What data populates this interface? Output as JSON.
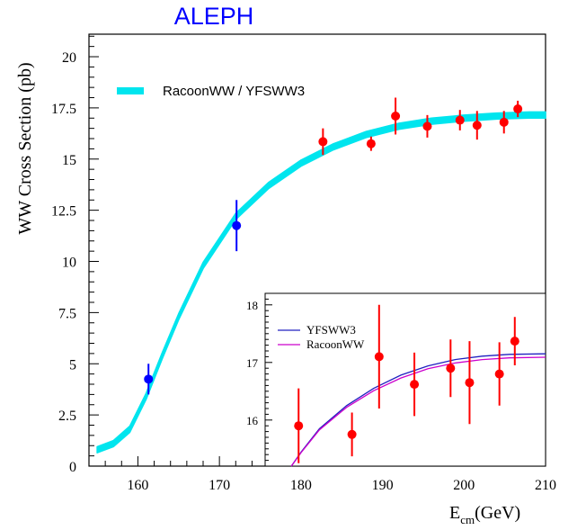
{
  "chart_data": [
    {
      "type": "scatter",
      "title": "ALEPH",
      "title_color": "#0000ff",
      "xlabel": "E",
      "xlabel_sub": "cm",
      "xlabel_unit": "(GeV)",
      "ylabel": "WW Cross Section (pb)",
      "xlim": [
        154,
        210
      ],
      "ylim": [
        0,
        21.1
      ],
      "x_ticks": [
        160,
        170,
        180,
        190,
        200,
        210
      ],
      "x_tick_labels": [
        "160",
        "170",
        "180",
        "190",
        "200",
        "210"
      ],
      "y_ticks": [
        0,
        2.5,
        5,
        7.5,
        10,
        12.5,
        15,
        17.5,
        20
      ],
      "y_tick_labels": [
        "0",
        "2.5",
        "5",
        "7.5",
        "10",
        "12.5",
        "15",
        "17.5",
        "20"
      ],
      "grid": false,
      "legend": {
        "position": "top-left",
        "entries": [
          "RacoonWW / YFSWW3"
        ]
      },
      "band": {
        "name": "RacoonWW / YFSWW3",
        "color": "#00e5ee",
        "x": [
          155,
          157,
          159,
          161,
          163,
          165,
          168,
          172,
          176,
          180,
          184,
          188,
          192,
          196,
          200,
          204,
          208,
          210
        ],
        "y": [
          0.8,
          1.1,
          1.8,
          3.4,
          5.4,
          7.3,
          9.8,
          12.2,
          13.7,
          14.8,
          15.6,
          16.2,
          16.6,
          16.85,
          17.0,
          17.1,
          17.15,
          17.15
        ],
        "half_width": 0.15
      },
      "series": [
        {
          "name": "",
          "color": "#0000ff",
          "x": [
            161.3,
            172.1
          ],
          "y": [
            4.25,
            11.75
          ],
          "err": [
            0.75,
            1.25
          ]
        },
        {
          "name": "",
          "color": "#ff0000",
          "x": [
            182.7,
            188.6,
            191.6,
            195.5,
            199.5,
            201.6,
            204.9,
            206.6
          ],
          "y": [
            15.85,
            15.75,
            17.1,
            16.6,
            16.9,
            16.65,
            16.8,
            17.45
          ],
          "err": [
            0.65,
            0.35,
            0.9,
            0.55,
            0.5,
            0.7,
            0.55,
            0.4
          ]
        }
      ]
    },
    {
      "type": "scatter",
      "title": "",
      "xlim": [
        179,
        210
      ],
      "ylim": [
        15.2,
        18.2
      ],
      "y_ticks": [
        16,
        17,
        18
      ],
      "y_tick_labels": [
        "16",
        "17",
        "18"
      ],
      "grid": false,
      "legend": {
        "position": "top-left",
        "entries": [
          "YFSWW3",
          "RacoonWW"
        ]
      },
      "lines": [
        {
          "name": "YFSWW3",
          "color": "#2020c0",
          "x": [
            181.9,
            183,
            185,
            188,
            191,
            194,
            197,
            200,
            203,
            206,
            210
          ],
          "y": [
            15.2,
            15.45,
            15.85,
            16.25,
            16.55,
            16.78,
            16.94,
            17.05,
            17.11,
            17.14,
            17.15
          ]
        },
        {
          "name": "RacoonWW",
          "color": "#cc00cc",
          "x": [
            181.9,
            183,
            185,
            188,
            191,
            194,
            197,
            200,
            203,
            206,
            210
          ],
          "y": [
            15.2,
            15.44,
            15.83,
            16.22,
            16.51,
            16.73,
            16.89,
            16.99,
            17.05,
            17.08,
            17.09
          ]
        }
      ],
      "series": [
        {
          "name": "",
          "color": "#ff0000",
          "x": [
            182.7,
            188.6,
            191.6,
            195.5,
            199.5,
            201.6,
            204.9,
            206.6
          ],
          "y": [
            15.9,
            15.75,
            17.1,
            16.62,
            16.9,
            16.65,
            16.8,
            17.37
          ],
          "err": [
            0.65,
            0.38,
            0.9,
            0.55,
            0.5,
            0.72,
            0.55,
            0.42
          ]
        }
      ]
    }
  ]
}
